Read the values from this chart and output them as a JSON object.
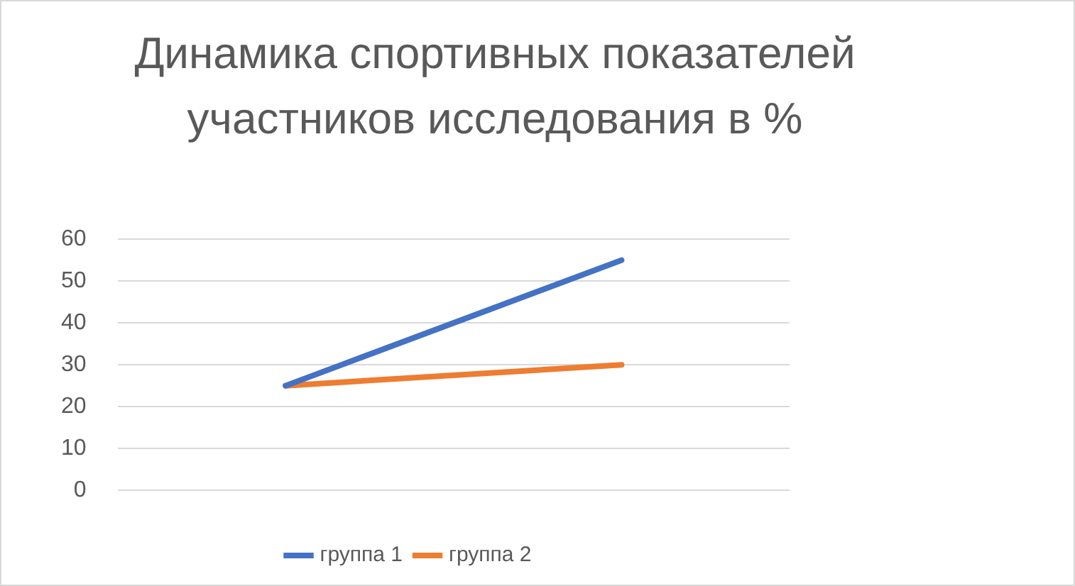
{
  "chart_data": {
    "type": "line",
    "title": "Динамика спортивных показателей участников исследования в %",
    "categories": [
      null,
      null
    ],
    "series": [
      {
        "name": "группа 1",
        "color": "#4472c4",
        "values": [
          25,
          55
        ]
      },
      {
        "name": "группа 2",
        "color": "#ed7d31",
        "values": [
          25,
          30
        ]
      }
    ],
    "ylim": [
      0,
      60
    ],
    "yticks": [
      0,
      10,
      20,
      30,
      40,
      50,
      60
    ],
    "grid": "y",
    "legend": "bottom",
    "marker": "none",
    "line_style": "solid"
  }
}
